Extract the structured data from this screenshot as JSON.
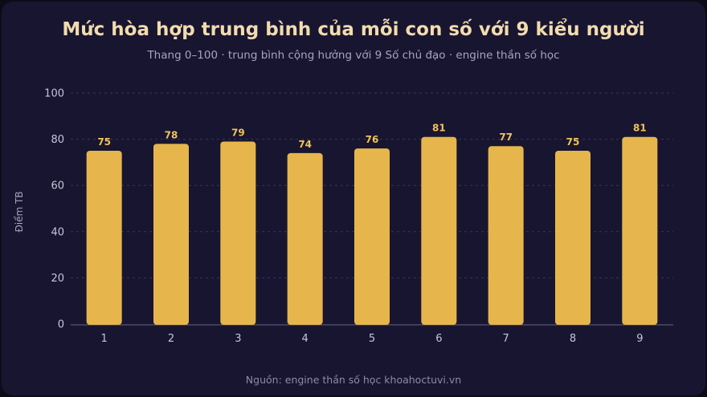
{
  "chart_data": {
    "type": "bar",
    "title": "Mức hòa hợp trung bình của mỗi con số với 9 kiểu người",
    "subtitle": "Thang 0–100 · trung bình cộng hưởng với 9 Số chủ đạo · engine thần số học",
    "xlabel": "",
    "ylabel": "Điểm TB",
    "categories": [
      "1",
      "2",
      "3",
      "4",
      "5",
      "6",
      "7",
      "8",
      "9"
    ],
    "values": [
      75,
      78,
      79,
      74,
      76,
      81,
      77,
      75,
      81
    ],
    "ylim": [
      0,
      100
    ],
    "yticks": [
      "0",
      "20",
      "40",
      "60",
      "80",
      "100"
    ],
    "grid": true,
    "bar_color": "#e6b64c",
    "label_color": "#f0c35a",
    "background": "#181530",
    "source": "Nguồn: engine thần số học khoahoctuvi.vn"
  }
}
